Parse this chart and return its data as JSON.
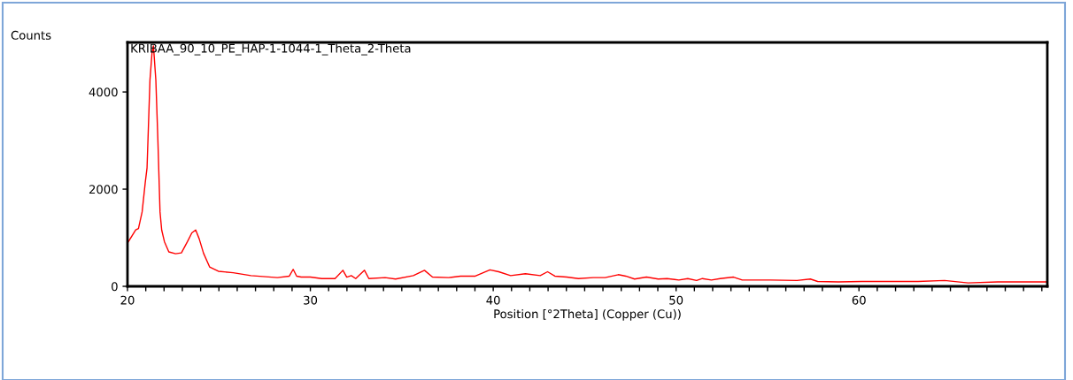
{
  "chart_data": {
    "type": "line",
    "title": "KRIBAA_90_10_PE_HAP-1-1044-1_Theta_2-Theta",
    "xlabel": "Position [°2Theta] (Copper (Cu))",
    "ylabel": "Counts",
    "xlim": [
      20,
      70.3
    ],
    "ylim": [
      0,
      5020
    ],
    "xticks": [
      20,
      {
        "value": 21,
        "label": null
      },
      {
        "value": 22,
        "label": null
      },
      {
        "value": 23,
        "label": null
      },
      {
        "value": 24,
        "label": null
      },
      {
        "value": 25,
        "label": null
      },
      {
        "value": 26,
        "label": null
      },
      {
        "value": 27,
        "label": null
      },
      {
        "value": 28,
        "label": null
      },
      {
        "value": 29,
        "label": null
      },
      30,
      {
        "value": 31,
        "label": null
      },
      {
        "value": 32,
        "label": null
      },
      {
        "value": 33,
        "label": null
      },
      {
        "value": 34,
        "label": null
      },
      {
        "value": 35,
        "label": null
      },
      {
        "value": 36,
        "label": null
      },
      {
        "value": 37,
        "label": null
      },
      {
        "value": 38,
        "label": null
      },
      {
        "value": 39,
        "label": null
      },
      40,
      {
        "value": 41,
        "label": null
      },
      {
        "value": 42,
        "label": null
      },
      {
        "value": 43,
        "label": null
      },
      {
        "value": 44,
        "label": null
      },
      {
        "value": 45,
        "label": null
      },
      {
        "value": 46,
        "label": null
      },
      {
        "value": 47,
        "label": null
      },
      {
        "value": 48,
        "label": null
      },
      {
        "value": 49,
        "label": null
      },
      50,
      {
        "value": 51,
        "label": null
      },
      {
        "value": 52,
        "label": null
      },
      {
        "value": 53,
        "label": null
      },
      {
        "value": 54,
        "label": null
      },
      {
        "value": 55,
        "label": null
      },
      {
        "value": 56,
        "label": null
      },
      {
        "value": 57,
        "label": null
      },
      {
        "value": 58,
        "label": null
      },
      {
        "value": 59,
        "label": null
      },
      60,
      {
        "value": 61,
        "label": null
      },
      {
        "value": 62,
        "label": null
      },
      {
        "value": 63,
        "label": null
      },
      {
        "value": 64,
        "label": null
      },
      {
        "value": 65,
        "label": null
      },
      {
        "value": 66,
        "label": null
      },
      {
        "value": 67,
        "label": null
      },
      {
        "value": 68,
        "label": null
      },
      {
        "value": 69,
        "label": null
      },
      {
        "value": 70,
        "label": null
      }
    ],
    "yticks": [
      0,
      2000,
      4000
    ],
    "grid": false,
    "series": [
      {
        "color": "#ff0000",
        "x": [
          20.05,
          20.45,
          20.6,
          20.8,
          20.97,
          21.07,
          21.23,
          21.34,
          21.42,
          21.55,
          21.66,
          21.78,
          21.87,
          22.02,
          22.26,
          22.63,
          22.95,
          23.28,
          23.52,
          23.73,
          23.92,
          24.16,
          24.49,
          24.97,
          25.78,
          26.75,
          28.2,
          28.85,
          29.06,
          29.25,
          29.5,
          30.0,
          30.62,
          31.35,
          31.78,
          31.99,
          32.24,
          32.48,
          32.96,
          33.2,
          34.09,
          34.66,
          35.63,
          36.24,
          36.68,
          37.56,
          38.21,
          39.02,
          39.82,
          40.3,
          40.95,
          41.76,
          42.57,
          42.97,
          43.37,
          44.02,
          44.66,
          45.47,
          46.12,
          46.84,
          47.25,
          47.73,
          48.38,
          49.02,
          49.51,
          50.15,
          50.64,
          51.12,
          51.44,
          51.93,
          52.41,
          53.14,
          53.62,
          55.16,
          56.61,
          57.34,
          57.74,
          58.87,
          60.16,
          61.94,
          63.23,
          64.68,
          65.97,
          67.59,
          69.2,
          70.25
        ],
        "values": [
          920,
          1160,
          1190,
          1530,
          2130,
          2440,
          4250,
          4800,
          4950,
          4250,
          3040,
          1530,
          1160,
          920,
          710,
          670,
          690,
          920,
          1100,
          1160,
          980,
          680,
          400,
          310,
          280,
          220,
          180,
          210,
          350,
          210,
          190,
          190,
          160,
          160,
          330,
          190,
          220,
          160,
          330,
          160,
          180,
          150,
          220,
          330,
          190,
          180,
          210,
          210,
          340,
          300,
          220,
          260,
          220,
          300,
          210,
          190,
          160,
          180,
          180,
          240,
          210,
          150,
          190,
          150,
          160,
          130,
          160,
          120,
          160,
          130,
          160,
          190,
          130,
          130,
          120,
          150,
          100,
          90,
          100,
          100,
          100,
          120,
          70,
          90,
          90,
          90
        ]
      }
    ]
  }
}
